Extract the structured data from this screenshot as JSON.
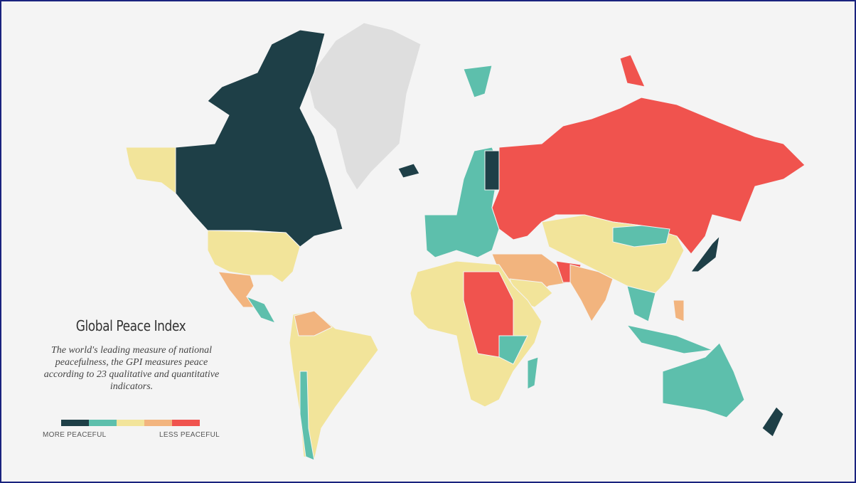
{
  "title": "Global Peace Index",
  "description": "The world's leading measure of national peacefulness, the GPI measures peace according to 23 qualitative and quantitative indicators.",
  "legend": {
    "colors": [
      "#1e3f47",
      "#5dbfac",
      "#f2e49a",
      "#f2b47e",
      "#f0534e"
    ],
    "labels": [
      "MORE PEACEFUL",
      "LESS PEACEFUL"
    ]
  }
}
